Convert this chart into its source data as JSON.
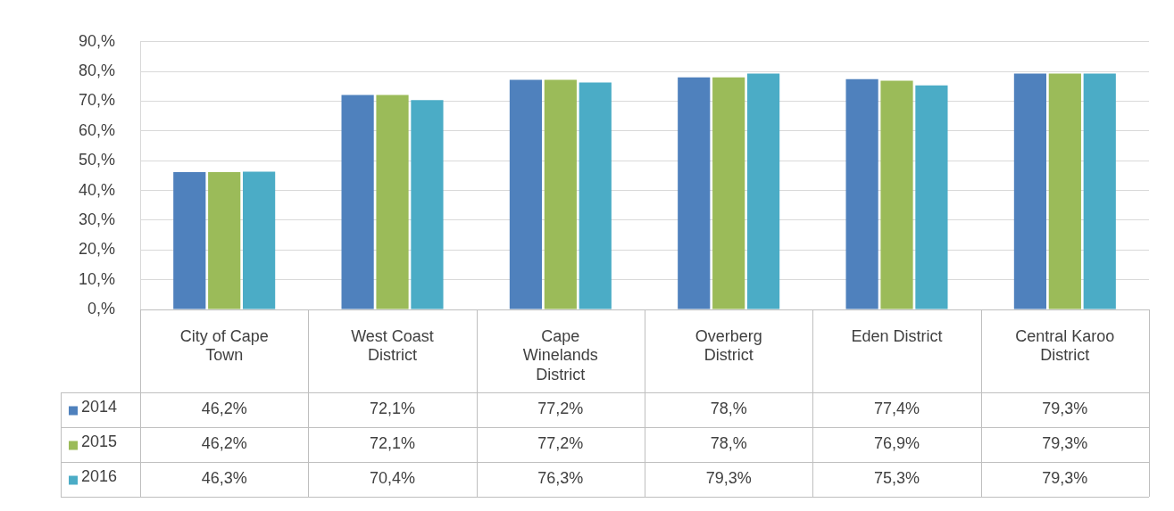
{
  "chart_data": {
    "type": "bar",
    "categories": [
      "City of Cape Town",
      "West Coast District",
      "Cape Winelands District",
      "Overberg District",
      "Eden District",
      "Central Karoo District"
    ],
    "series": [
      {
        "name": "2014",
        "color": "#4f81bd",
        "values": [
          46.2,
          72.1,
          77.2,
          78,
          77.4,
          79.3
        ],
        "value_labels": [
          "46,2%",
          "72,1%",
          "77,2%",
          "78,%",
          "77,4%",
          "79,3%"
        ]
      },
      {
        "name": "2015",
        "color": "#9bbb59",
        "values": [
          46.2,
          72.1,
          77.2,
          78,
          76.9,
          79.3
        ],
        "value_labels": [
          "46,2%",
          "72,1%",
          "77,2%",
          "78,%",
          "76,9%",
          "79,3%"
        ]
      },
      {
        "name": "2016",
        "color": "#4bacc6",
        "values": [
          46.3,
          70.4,
          76.3,
          79.3,
          75.3,
          79.3
        ],
        "value_labels": [
          "46,3%",
          "70,4%",
          "76,3%",
          "79,3%",
          "75,3%",
          "79,3%"
        ]
      }
    ],
    "ylim": [
      0,
      90
    ],
    "yticks": [
      {
        "value": 0,
        "label": "0,%"
      },
      {
        "value": 10,
        "label": "10,%"
      },
      {
        "value": 20,
        "label": "20,%"
      },
      {
        "value": 30,
        "label": "30,%"
      },
      {
        "value": 40,
        "label": "40,%"
      },
      {
        "value": 50,
        "label": "50,%"
      },
      {
        "value": 60,
        "label": "60,%"
      },
      {
        "value": 70,
        "label": "70,%"
      },
      {
        "value": 80,
        "label": "80,%"
      },
      {
        "value": 90,
        "label": "90,%"
      }
    ],
    "grid": "y",
    "legend": "bottom"
  }
}
